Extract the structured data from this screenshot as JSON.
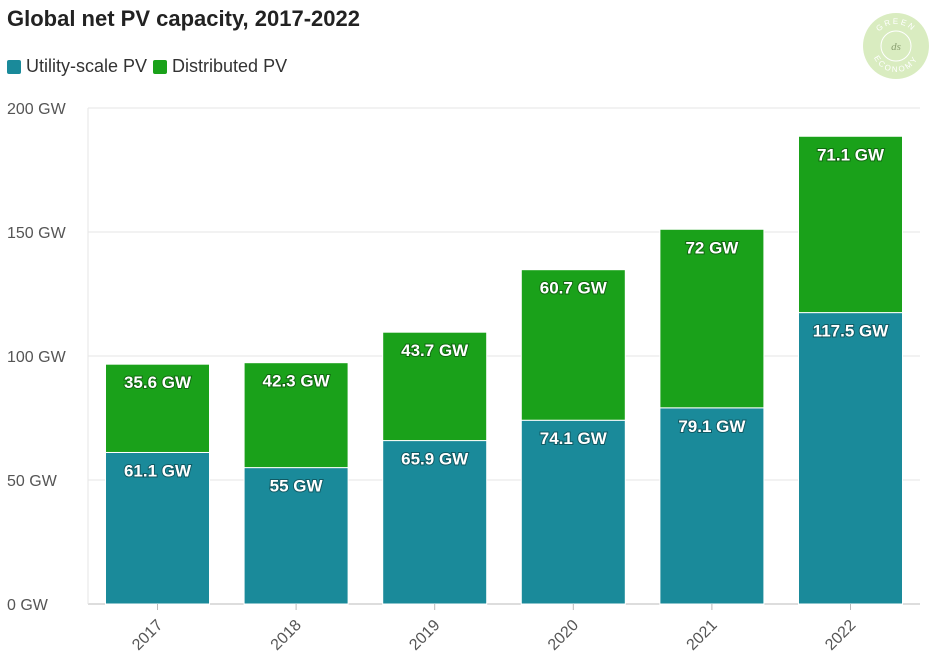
{
  "header": {
    "title": "Global net PV capacity, 2017-2022"
  },
  "legend": {
    "items": [
      {
        "label": "Utility-scale PV",
        "color": "#1a8a9a"
      },
      {
        "label": "Distributed PV",
        "color": "#1aa11a"
      }
    ]
  },
  "logo": {
    "icon": "green-economy-seal",
    "text_top": "GREEN",
    "text_bottom": "ECONOMY",
    "monogram": "ds"
  },
  "chart_data": {
    "type": "bar",
    "stacked": true,
    "title": "Global net PV capacity, 2017-2022",
    "xlabel": "",
    "ylabel": "",
    "categories": [
      "2017",
      "2018",
      "2019",
      "2020",
      "2021",
      "2022"
    ],
    "series": [
      {
        "name": "Utility-scale PV",
        "color": "#1a8a9a",
        "values": [
          61.1,
          55,
          65.9,
          74.1,
          79.1,
          117.5
        ],
        "labels": [
          "61.1 GW",
          "55 GW",
          "65.9 GW",
          "74.1 GW",
          "79.1 GW",
          "117.5 GW"
        ]
      },
      {
        "name": "Distributed PV",
        "color": "#1aa11a",
        "values": [
          35.6,
          42.3,
          43.7,
          60.7,
          72,
          71.1
        ],
        "labels": [
          "35.6 GW",
          "42.3 GW",
          "43.7 GW",
          "60.7 GW",
          "72 GW",
          "71.1 GW"
        ]
      }
    ],
    "ylim": [
      0,
      200
    ],
    "yticks": [
      0,
      50,
      100,
      150,
      200
    ],
    "ytick_labels": [
      "0 GW",
      "50 GW",
      "100 GW",
      "150 GW",
      "200 GW"
    ],
    "grid": true,
    "legend_position": "top-left"
  }
}
